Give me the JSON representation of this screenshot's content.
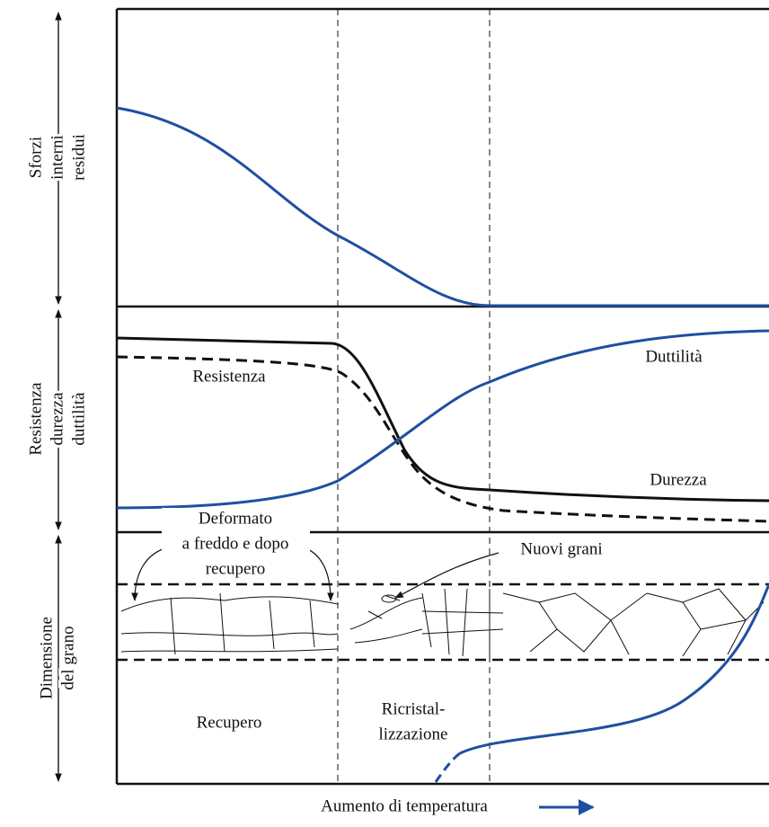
{
  "axis_labels": [
    [
      "Sforzi",
      "interni",
      "residui"
    ],
    [
      "Resistenza",
      "durezza",
      "duttilità"
    ],
    [
      "Dimensione",
      "del grano"
    ]
  ],
  "curve_labels": {
    "resistenza": "Resistenza",
    "duttilita": "Duttilità",
    "durezza": "Durezza"
  },
  "annotations": {
    "deformato": [
      "Deformato",
      "a freddo e dopo",
      "recupero"
    ],
    "nuovi_grani": "Nuovi grani"
  },
  "regions": {
    "recupero": [
      "Recupero"
    ],
    "ricristallizzazione": [
      "Ricristal-",
      "lizzazione"
    ]
  },
  "x_axis_label": "Aumento di temperatura"
}
